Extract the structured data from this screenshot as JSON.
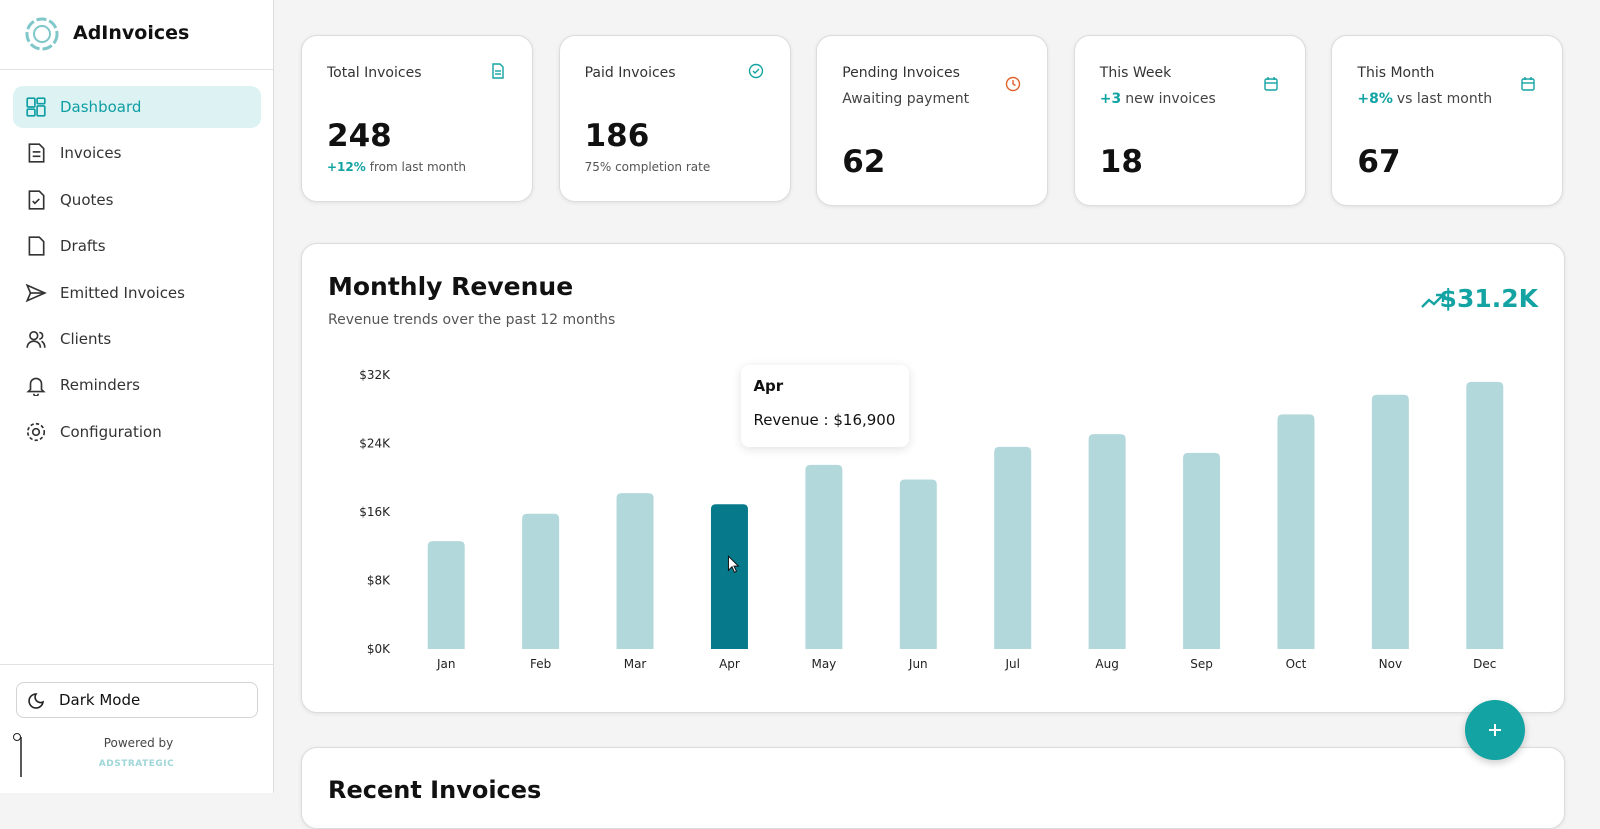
{
  "sidebar": {
    "brand": "AdInvoices",
    "nav": [
      "Dashboard",
      "Invoices",
      "Quotes",
      "Drafts",
      "Emitted Invoices",
      "Clients",
      "Reminders",
      "Configuration"
    ],
    "active_nav": "Dashboard",
    "dark_mode": "Dark Mode",
    "powered_by": "Powered by",
    "powered_brand": "ADSTRATEGIC"
  },
  "cards": [
    {
      "title": "Total Invoices",
      "value": 248,
      "note_highlight": "+12%",
      "note": "from last month"
    },
    {
      "title": "Paid Invoices",
      "value": 186,
      "note": "75% completion rate"
    },
    {
      "title": "Pending Invoices",
      "subtitle": "Awaiting payment",
      "value": 62
    },
    {
      "title": "This Week",
      "subtitle_highlight": "+3",
      "subtitle": "new invoices",
      "value": 18
    },
    {
      "title": "This Month",
      "subtitle_highlight": "+8%",
      "subtitle": "vs last month",
      "value": 67
    }
  ],
  "chart_data": {
    "type": "bar",
    "title": "Monthly Revenue",
    "subtitle": "Revenue trends over the past 12 months",
    "total_label": "$31.2K",
    "categories": [
      "Jan",
      "Feb",
      "Mar",
      "Apr",
      "May",
      "Jun",
      "Jul",
      "Aug",
      "Sep",
      "Oct",
      "Nov",
      "Dec"
    ],
    "values": [
      12600,
      15800,
      18200,
      16900,
      21500,
      19800,
      23600,
      25100,
      22900,
      27400,
      29700,
      31200
    ],
    "color": "#b3d8dc",
    "active_color": "#06798a",
    "active_category": "Apr",
    "tooltip": {
      "title": "Apr",
      "text": "Revenue : $16,900"
    },
    "ylim": [
      0,
      32000
    ],
    "yticks": [
      {
        "value": 0,
        "label": "$0K"
      },
      {
        "value": 8000,
        "label": "$8K"
      },
      {
        "value": 16000,
        "label": "$16K"
      },
      {
        "value": 24000,
        "label": "$24K"
      },
      {
        "value": 32000,
        "label": "$32K"
      }
    ],
    "grid": false
  },
  "recent_invoices": {
    "title": "Recent Invoices"
  }
}
